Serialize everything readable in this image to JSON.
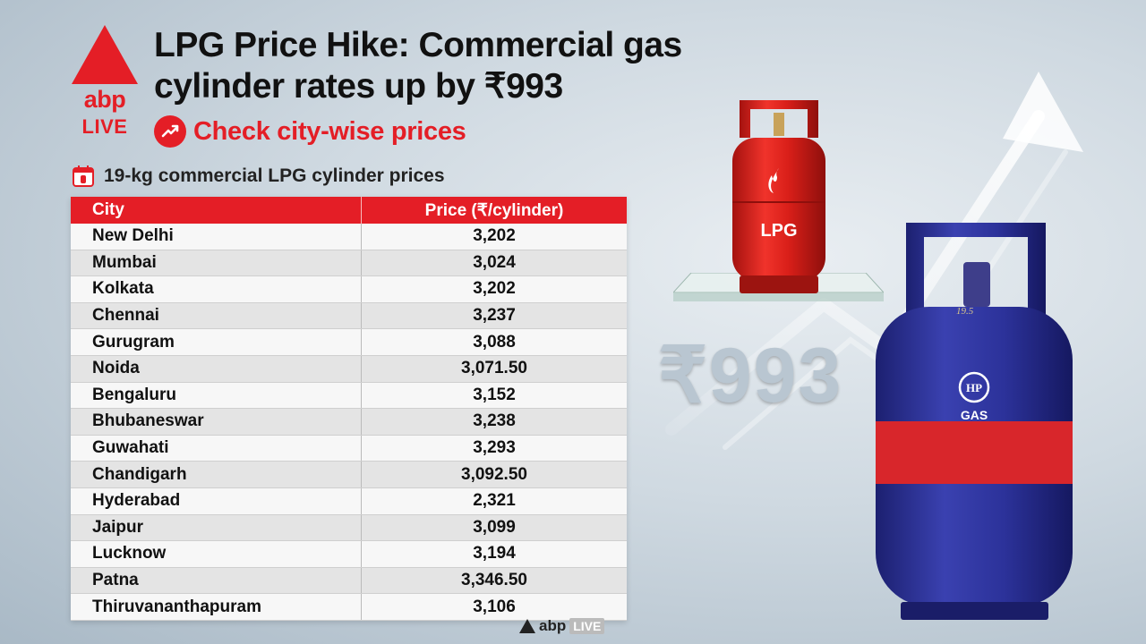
{
  "brand": {
    "abp": "abp",
    "live": "LIVE"
  },
  "headline": "LPG Price Hike: Commercial gas cylinder rates up by ₹993",
  "subhead": "Check city-wise prices",
  "table_label": "19-kg commercial LPG cylinder prices",
  "table": {
    "headers": [
      "City",
      "Price (₹/cylinder)"
    ],
    "rows": [
      [
        "New Delhi",
        "3,202"
      ],
      [
        "Mumbai",
        "3,024"
      ],
      [
        "Kolkata",
        "3,202"
      ],
      [
        "Chennai",
        "3,237"
      ],
      [
        "Gurugram",
        "3,088"
      ],
      [
        "Noida",
        "3,071.50"
      ],
      [
        "Bengaluru",
        "3,152"
      ],
      [
        "Bhubaneswar",
        "3,238"
      ],
      [
        "Guwahati",
        "3,293"
      ],
      [
        "Chandigarh",
        "3,092.50"
      ],
      [
        "Hyderabad",
        "2,321"
      ],
      [
        "Jaipur",
        "3,099"
      ],
      [
        "Lucknow",
        "3,194"
      ],
      [
        "Patna",
        "3,346.50"
      ],
      [
        "Thiruvananthapuram",
        "3,106"
      ]
    ]
  },
  "big_amount": "₹993",
  "red_cylinder_label": "LPG",
  "blue_cylinder": {
    "brand": "HP",
    "gas": "GAS",
    "weight": "19.5"
  },
  "footer": {
    "abp": "abp",
    "live": "LIVE"
  },
  "colors": {
    "accent": "#e41e26",
    "blue_cylinder": "#2a2f8f"
  }
}
